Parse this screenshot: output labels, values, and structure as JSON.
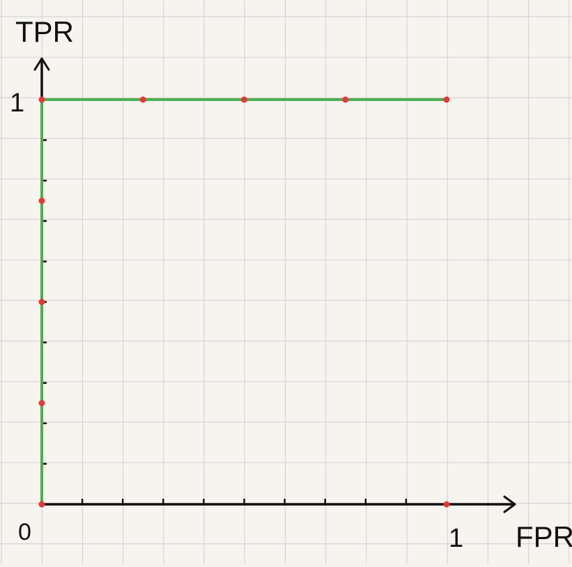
{
  "chart_data": {
    "type": "line",
    "xlabel": "FPR",
    "ylabel": "TPR",
    "origin_label": "0",
    "x_end_label": "1",
    "y_end_label": "1",
    "xlim": [
      0,
      1
    ],
    "ylim": [
      0,
      1
    ],
    "grid": true,
    "x_ticks": [
      0.1,
      0.2,
      0.3,
      0.4,
      0.5,
      0.6,
      0.7,
      0.8,
      0.9
    ],
    "y_ticks": [
      0.1,
      0.2,
      0.3,
      0.4,
      0.5,
      0.6,
      0.7,
      0.8,
      0.9
    ],
    "series": [
      {
        "x": [
          0,
          0,
          1
        ],
        "y": [
          0,
          1,
          1
        ],
        "color": "#4caf50"
      }
    ],
    "points": [
      {
        "x": 0,
        "y": 0
      },
      {
        "x": 0,
        "y": 0.25
      },
      {
        "x": 0,
        "y": 0.5
      },
      {
        "x": 0,
        "y": 0.75
      },
      {
        "x": 0,
        "y": 1
      },
      {
        "x": 0.25,
        "y": 1
      },
      {
        "x": 0.5,
        "y": 1
      },
      {
        "x": 0.75,
        "y": 1
      },
      {
        "x": 1,
        "y": 1
      },
      {
        "x": 1,
        "y": 0
      }
    ],
    "colors": {
      "curve": "#4caf50",
      "points": "#e53935",
      "axes": "#111111",
      "grid": "#d5d5d5",
      "background": "#f6f4ef"
    }
  }
}
